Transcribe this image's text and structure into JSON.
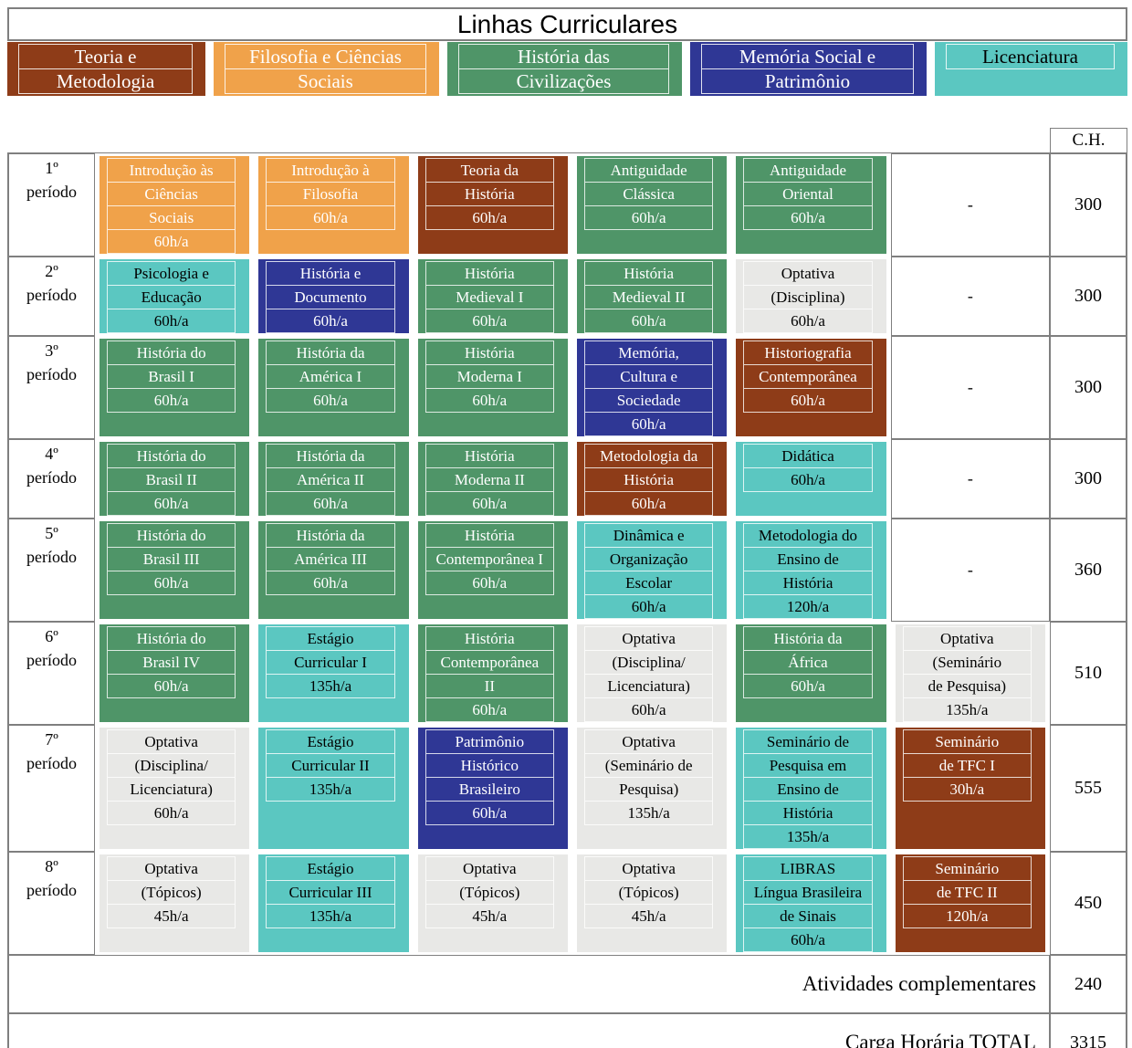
{
  "title": "Linhas Curriculares",
  "ch_header": "C.H.",
  "colors": {
    "brown": "#8E3C18",
    "orange": "#F0A24A",
    "green": "#4F9568",
    "navy": "#2F3795",
    "teal": "#5BC7C1",
    "gray": "#E8E8E6",
    "grid_border": "#7F7F7F"
  },
  "legend": [
    {
      "lines": [
        "Teoria e",
        "Metodologia"
      ],
      "color": "brown",
      "text": "white"
    },
    {
      "lines": [
        "Filosofia e Ciências",
        "Sociais"
      ],
      "color": "orange",
      "text": "white"
    },
    {
      "lines": [
        "História das",
        "Civilizações"
      ],
      "color": "green",
      "text": "white"
    },
    {
      "lines": [
        "Memória Social e",
        "Patrimônio"
      ],
      "color": "navy",
      "text": "white"
    },
    {
      "lines": [
        "Licenciatura"
      ],
      "color": "teal",
      "text": "black"
    }
  ],
  "rows": [
    {
      "period": [
        "1º",
        "período"
      ],
      "ch": "300",
      "cells": [
        {
          "color": "orange",
          "lines": [
            "Introdução às",
            "Ciências",
            "Sociais",
            "60h/a"
          ]
        },
        {
          "color": "orange",
          "lines": [
            "Introdução à",
            "Filosofia",
            "60h/a"
          ]
        },
        {
          "color": "brown",
          "lines": [
            "Teoria da",
            "História",
            "60h/a"
          ]
        },
        {
          "color": "green",
          "lines": [
            "Antiguidade",
            "Clássica",
            "60h/a"
          ]
        },
        {
          "color": "green",
          "lines": [
            "Antiguidade",
            "Oriental",
            "60h/a"
          ]
        },
        {
          "dash": "-"
        }
      ]
    },
    {
      "period": [
        "2º",
        "período"
      ],
      "ch": "300",
      "cells": [
        {
          "color": "teal",
          "lines": [
            "Psicologia e",
            "Educação",
            "60h/a"
          ]
        },
        {
          "color": "navy",
          "lines": [
            "História e",
            "Documento",
            "60h/a"
          ]
        },
        {
          "color": "green",
          "lines": [
            "História",
            "Medieval I",
            "60h/a"
          ]
        },
        {
          "color": "green",
          "lines": [
            "História",
            "Medieval II",
            "60h/a"
          ]
        },
        {
          "color": "gray",
          "lines": [
            "Optativa",
            "(Disciplina)",
            "60h/a"
          ]
        },
        {
          "dash": "-"
        }
      ]
    },
    {
      "period": [
        "3º",
        "período"
      ],
      "ch": "300",
      "cells": [
        {
          "color": "green",
          "lines": [
            "História do",
            "Brasil I",
            "60h/a"
          ]
        },
        {
          "color": "green",
          "lines": [
            "História da",
            "América I",
            "60h/a"
          ]
        },
        {
          "color": "green",
          "lines": [
            "História",
            "Moderna I",
            "60h/a"
          ]
        },
        {
          "color": "navy",
          "lines": [
            "Memória,",
            "Cultura e",
            "Sociedade",
            "60h/a"
          ]
        },
        {
          "color": "brown",
          "lines": [
            "Historiografia",
            "Contemporânea",
            "60h/a"
          ]
        },
        {
          "dash": "-"
        }
      ]
    },
    {
      "period": [
        "4º",
        "período"
      ],
      "ch": "300",
      "cells": [
        {
          "color": "green",
          "lines": [
            "História do",
            "Brasil II",
            "60h/a"
          ]
        },
        {
          "color": "green",
          "lines": [
            "História da",
            "América II",
            "60h/a"
          ]
        },
        {
          "color": "green",
          "lines": [
            "História",
            "Moderna II",
            "60h/a"
          ]
        },
        {
          "color": "brown",
          "lines": [
            "Metodologia da",
            "História",
            "60h/a"
          ]
        },
        {
          "color": "teal",
          "lines": [
            "Didática",
            "60h/a"
          ]
        },
        {
          "dash": "-"
        }
      ]
    },
    {
      "period": [
        "5º",
        "período"
      ],
      "ch": "360",
      "cells": [
        {
          "color": "green",
          "lines": [
            "História do",
            "Brasil III",
            "60h/a"
          ]
        },
        {
          "color": "green",
          "lines": [
            "História da",
            "América III",
            "60h/a"
          ]
        },
        {
          "color": "green",
          "lines": [
            "História",
            "Contemporânea I",
            "60h/a"
          ]
        },
        {
          "color": "teal",
          "lines": [
            "Dinâmica e",
            "Organização",
            "Escolar",
            "60h/a"
          ]
        },
        {
          "color": "teal",
          "lines": [
            "Metodologia do",
            "Ensino de",
            "História",
            "120h/a"
          ]
        },
        {
          "dash": "-"
        }
      ]
    },
    {
      "period": [
        "6º",
        "período"
      ],
      "ch": "510",
      "cells": [
        {
          "color": "green",
          "lines": [
            "História do",
            "Brasil IV",
            "60h/a"
          ]
        },
        {
          "color": "teal",
          "lines": [
            "Estágio",
            "Curricular I",
            "135h/a"
          ]
        },
        {
          "color": "green",
          "lines": [
            "História",
            "Contemporânea",
            "II",
            "60h/a"
          ]
        },
        {
          "color": "gray",
          "lines": [
            "Optativa",
            "(Disciplina/",
            "Licenciatura)",
            "60h/a"
          ]
        },
        {
          "color": "green",
          "lines": [
            "História da",
            "África",
            "60h/a"
          ]
        },
        {
          "color": "gray",
          "lines": [
            "Optativa",
            "(Seminário",
            "de Pesquisa)",
            "135h/a"
          ]
        }
      ]
    },
    {
      "period": [
        "7º",
        "período"
      ],
      "ch": "555",
      "cells": [
        {
          "color": "gray",
          "lines": [
            "Optativa",
            "(Disciplina/",
            "Licenciatura)",
            "60h/a"
          ]
        },
        {
          "color": "teal",
          "lines": [
            "Estágio",
            "Curricular II",
            "135h/a"
          ]
        },
        {
          "color": "navy",
          "lines": [
            "Patrimônio",
            "Histórico",
            "Brasileiro",
            "60h/a"
          ]
        },
        {
          "color": "gray",
          "lines": [
            "Optativa",
            "(Seminário de",
            "Pesquisa)",
            "135h/a"
          ]
        },
        {
          "color": "teal",
          "lines": [
            "Seminário de",
            "Pesquisa em",
            "Ensino de",
            "História",
            "135h/a"
          ]
        },
        {
          "color": "brown",
          "lines": [
            "Seminário",
            "de TFC I",
            "30h/a"
          ]
        }
      ]
    },
    {
      "period": [
        "8º",
        "período"
      ],
      "ch": "450",
      "cells": [
        {
          "color": "gray",
          "lines": [
            "Optativa",
            "(Tópicos)",
            "45h/a"
          ]
        },
        {
          "color": "teal",
          "lines": [
            "Estágio",
            "Curricular III",
            "135h/a"
          ]
        },
        {
          "color": "gray",
          "lines": [
            "Optativa",
            "(Tópicos)",
            "45h/a"
          ]
        },
        {
          "color": "gray",
          "lines": [
            "Optativa",
            "(Tópicos)",
            "45h/a"
          ]
        },
        {
          "color": "teal",
          "lines": [
            "LIBRAS",
            "Língua Brasileira",
            "de Sinais",
            "60h/a"
          ]
        },
        {
          "color": "brown",
          "lines": [
            "Seminário",
            "de TFC II",
            "120h/a"
          ]
        }
      ]
    }
  ],
  "summary": [
    {
      "label": "Atividades complementares",
      "value": "240"
    },
    {
      "label": "Carga Horária TOTAL",
      "value": "3315"
    }
  ]
}
